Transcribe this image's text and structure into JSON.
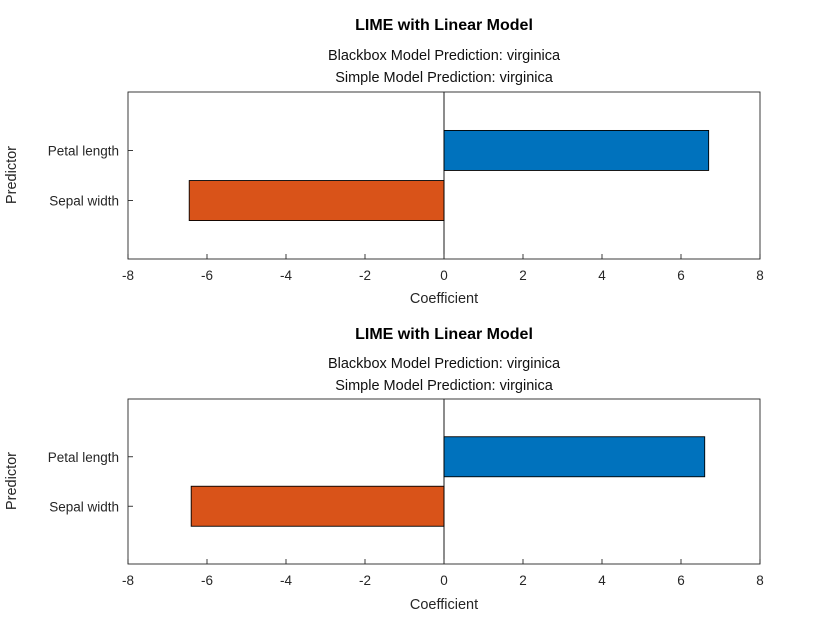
{
  "chart_data": [
    {
      "type": "bar",
      "orientation": "horizontal",
      "title": "LIME with Linear Model",
      "subtitle_blackbox": "Blackbox Model Prediction: virginica",
      "subtitle_simple": "Simple Model Prediction: virginica",
      "xlabel": "Coefficient",
      "ylabel": "Predictor",
      "categories": [
        "Petal length",
        "Sepal width"
      ],
      "values": [
        6.7,
        -6.45
      ],
      "bar_colors": [
        "#0072BD",
        "#D95319"
      ],
      "xlim": [
        -8,
        8
      ],
      "xticks": [
        -8,
        -6,
        -4,
        -2,
        0,
        2,
        4,
        6,
        8
      ],
      "grid": false,
      "legend": "none"
    },
    {
      "type": "bar",
      "orientation": "horizontal",
      "title": "LIME with Linear Model",
      "subtitle_blackbox": "Blackbox Model Prediction: virginica",
      "subtitle_simple": "Simple Model Prediction: virginica",
      "xlabel": "Coefficient",
      "ylabel": "Predictor",
      "categories": [
        "Petal length",
        "Sepal width"
      ],
      "values": [
        6.6,
        -6.4
      ],
      "bar_colors": [
        "#0072BD",
        "#D95319"
      ],
      "xlim": [
        -8,
        8
      ],
      "xticks": [
        -8,
        -6,
        -4,
        -2,
        0,
        2,
        4,
        6,
        8
      ],
      "grid": false,
      "legend": "none"
    }
  ],
  "colors": {
    "background": "#FFFFFF",
    "axis": "#262626",
    "bar_edge": "#000000",
    "blue_bar": "#0072BD",
    "orange_bar": "#D95319"
  }
}
